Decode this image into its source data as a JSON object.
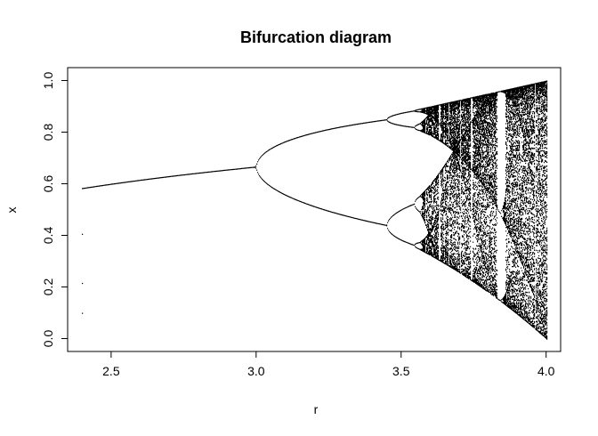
{
  "chart_data": {
    "type": "scatter",
    "title": "Bifurcation diagram",
    "xlabel": "r",
    "ylabel": "x",
    "xlim": [
      2.35,
      4.05
    ],
    "ylim": [
      -0.05,
      1.05
    ],
    "x_ticks": [
      2.5,
      3.0,
      3.5,
      4.0
    ],
    "x_tick_labels": [
      "2.5",
      "3.0",
      "3.5",
      "4.0"
    ],
    "y_ticks": [
      0.0,
      0.2,
      0.4,
      0.6,
      0.8,
      1.0
    ],
    "y_tick_labels": [
      "0.0",
      "0.2",
      "0.4",
      "0.6",
      "0.8",
      "1.0"
    ],
    "grid": false,
    "legend": "none",
    "point_color": "#000000",
    "series": [
      {
        "map": "logistic: x[n+1] = r * x[n] * (1 - x[n])",
        "r_range": [
          2.4,
          4.0
        ],
        "transient_points_at_r_min": [
          0.1,
          0.216,
          0.406
        ]
      }
    ]
  }
}
